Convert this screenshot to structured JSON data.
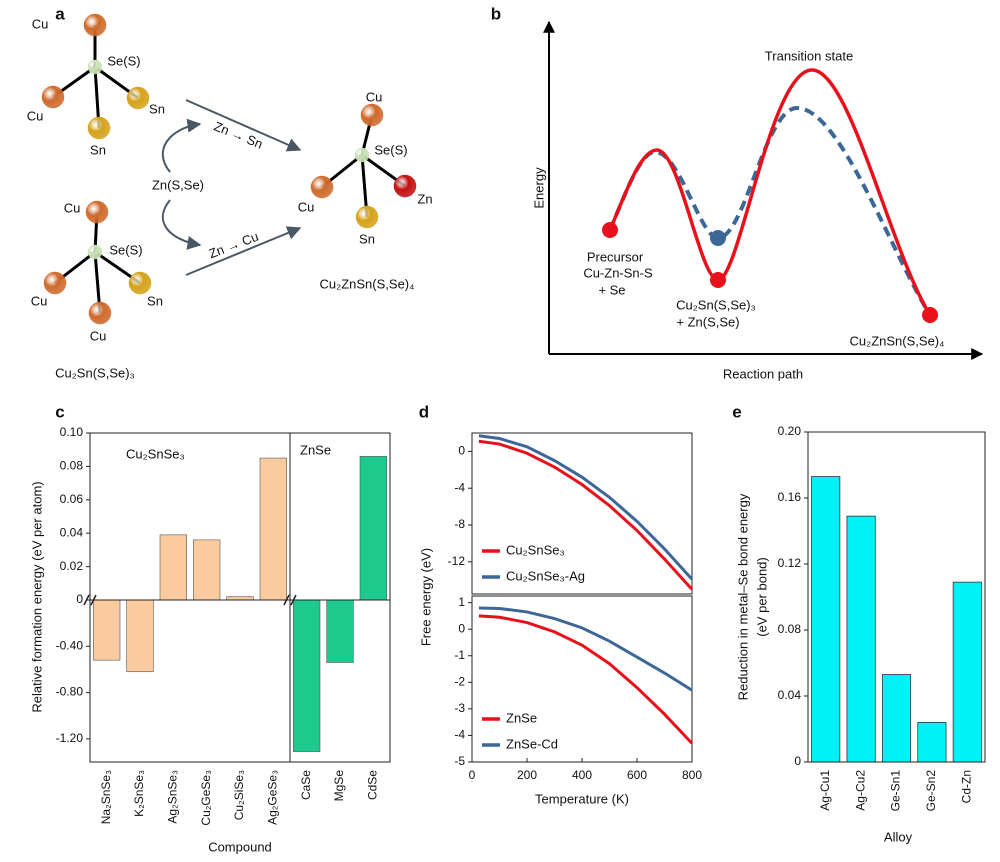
{
  "panel_labels": [
    "a",
    "b",
    "c",
    "d",
    "e"
  ],
  "diagram_a": {
    "molecules": [
      {
        "atoms": [
          {
            "label": "Se(S)",
            "color": "#c9e2b4"
          },
          {
            "label": "Cu",
            "color": "#cf6a2c"
          },
          {
            "label": "Cu",
            "color": "#cf6a2c"
          },
          {
            "label": "Sn",
            "color": "#d4a21a"
          },
          {
            "label": "Sn",
            "color": "#d4a21a"
          }
        ]
      },
      {
        "atoms": [
          {
            "label": "Se(S)",
            "color": "#c9e2b4"
          },
          {
            "label": "Cu",
            "color": "#cf6a2c"
          },
          {
            "label": "Cu",
            "color": "#cf6a2c"
          },
          {
            "label": "Sn",
            "color": "#d4a21a"
          },
          {
            "label": "Cu",
            "color": "#cf6a2c"
          }
        ]
      },
      {
        "atoms": [
          {
            "label": "Se(S)",
            "color": "#c9e2b4"
          },
          {
            "label": "Cu",
            "color": "#cf6a2c"
          },
          {
            "label": "Cu",
            "color": "#cf6a2c"
          },
          {
            "label": "Zn",
            "color": "#c41010"
          },
          {
            "label": "Sn",
            "color": "#d4a21a"
          }
        ]
      }
    ],
    "reactant_label": "Cu₂Sn(S,Se)₃",
    "product_label": "Cu₂ZnSn(S,Se)₄",
    "reagent": "Zn(S,Se)",
    "arrow_labels": [
      "Zn → Sn",
      "Zn → Cu"
    ]
  },
  "diagram_b": {
    "ylabel": "Energy",
    "xlabel": "Reaction path",
    "transition_state": "Transition state",
    "precursor": [
      "Precursor",
      "Cu-Zn-Sn-S",
      "+ Se"
    ],
    "intermediate": [
      "Cu₂Sn(S,Se)₃",
      "+ Zn(S,Se)"
    ],
    "product": "Cu₂ZnSn(S,Se)₄"
  },
  "chart_data": [
    {
      "type": "bar",
      "ylabel": "Relative formation energy (eV per atom)",
      "xlabel": "Compound",
      "ylim_upper": [
        0,
        0.1
      ],
      "yticks_upper": [
        0,
        0.02,
        0.04,
        0.06,
        0.08,
        {
          "value": 0.1,
          "label": "0.10"
        }
      ],
      "ylim_lower": [
        -1.4,
        0
      ],
      "yticks_lower": [
        {
          "value": -0.4,
          "label": "-0.40"
        },
        {
          "value": -0.8,
          "label": "-0.80"
        },
        {
          "value": -1.2,
          "label": "-1.20"
        }
      ],
      "groups": [
        {
          "label": "Cu₂SnSe₃",
          "color": "#fbcb9f",
          "categories": [
            "Na₂SnSe₃",
            "K₂SnSe₃",
            "Ag₂SnSe₃",
            "Cu₂GeSe₃",
            "Cu₂SiSe₃",
            "Ag₂GeSe₃"
          ],
          "values": [
            -0.52,
            -0.62,
            0.039,
            0.036,
            0.002,
            0.085
          ]
        },
        {
          "label": "ZnSe",
          "color": "#1ec98d",
          "categories": [
            "CaSe",
            "MgSe",
            "CdSe"
          ],
          "values": [
            -1.31,
            -0.54,
            0.086
          ]
        }
      ]
    },
    {
      "type": "line",
      "ylabel": "Free energy (eV)",
      "xlim": [
        0,
        800
      ],
      "ylim": [
        -15.5,
        2
      ],
      "yticks": [
        0,
        -4,
        -8,
        -12
      ],
      "legend": "lower left",
      "x": [
        25,
        100,
        200,
        300,
        400,
        500,
        600,
        700,
        800
      ],
      "series": [
        {
          "name": "Cu₂SnSe₃",
          "color": "#e8111b",
          "values": [
            1.1,
            0.8,
            -0.2,
            -1.7,
            -3.6,
            -5.9,
            -8.6,
            -11.7,
            -15.0
          ]
        },
        {
          "name": "Cu₂SnSe₃-Ag",
          "color": "#3d6796",
          "values": [
            1.7,
            1.4,
            0.5,
            -1.0,
            -2.8,
            -5.0,
            -7.6,
            -10.6,
            -13.9
          ]
        }
      ]
    },
    {
      "type": "line",
      "xlabel": "Temperature (K)",
      "xlim": [
        0,
        800
      ],
      "xticks": [
        0,
        200,
        400,
        600,
        800
      ],
      "ylim": [
        -5,
        1.25
      ],
      "yticks": [
        1,
        0,
        -1,
        -2,
        -3,
        -4,
        -5
      ],
      "legend": "lower left",
      "x": [
        25,
        100,
        200,
        300,
        400,
        500,
        600,
        700,
        800
      ],
      "series": [
        {
          "name": "ZnSe",
          "color": "#e8111b",
          "values": [
            0.5,
            0.45,
            0.25,
            -0.1,
            -0.6,
            -1.3,
            -2.2,
            -3.2,
            -4.3
          ]
        },
        {
          "name": "ZnSe-Cd",
          "color": "#3d6796",
          "values": [
            0.8,
            0.78,
            0.65,
            0.4,
            0.05,
            -0.45,
            -1.05,
            -1.65,
            -2.3
          ]
        }
      ]
    },
    {
      "type": "bar",
      "ylabel": [
        "Reduction in metal–Se bond energy",
        "(eV per bond)"
      ],
      "xlabel": "Alloy",
      "categories": [
        "Ag-Cu1",
        "Ag-Cu2",
        "Ge-Sn1",
        "Ge-Sn2",
        "Cd-Zn"
      ],
      "values": [
        0.173,
        0.149,
        0.053,
        0.024,
        0.109
      ],
      "color": "#00f2f8",
      "ylim": [
        0,
        0.2
      ],
      "yticks": [
        0,
        0.04,
        0.08,
        0.12,
        0.16,
        {
          "value": 0.2,
          "label": "0.20"
        }
      ]
    }
  ]
}
